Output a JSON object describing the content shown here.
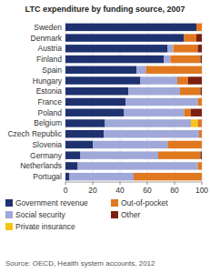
{
  "chart_data": {
    "type": "bar",
    "orientation": "horizontal",
    "stacked": true,
    "title": "LTC expenditure by funding source, 2007",
    "source": "Source: OECD, Health system accounts, 2012",
    "categories": [
      "Sweden",
      "Denmark",
      "Austria",
      "Finland",
      "Spain",
      "Hungary",
      "Estonia",
      "France",
      "Poland",
      "Belgium",
      "Czech Republic",
      "Slovenia",
      "Germany",
      "Netherlands",
      "Portugal"
    ],
    "series": [
      {
        "name": "Government revenue",
        "color": "#1f3270",
        "values": [
          96,
          87,
          75,
          72,
          52,
          55,
          46,
          44,
          43,
          29,
          28,
          20,
          11,
          9,
          3
        ]
      },
      {
        "name": "Social security",
        "color": "#9fa8d8",
        "values": [
          0,
          0,
          4,
          5,
          7,
          27,
          38,
          53,
          44,
          63,
          70,
          55,
          57,
          88,
          47
        ]
      },
      {
        "name": "Private insurance",
        "color": "#f5c518",
        "values": [
          0,
          0,
          0,
          0,
          0,
          0,
          0,
          0,
          0,
          5,
          0,
          0,
          0,
          0,
          0
        ]
      },
      {
        "name": "Out-of-pocket",
        "color": "#e07820",
        "values": [
          4,
          9,
          18,
          22,
          41,
          8,
          15,
          3,
          5,
          3,
          2,
          25,
          31,
          3,
          50
        ]
      },
      {
        "name": "Other",
        "color": "#7b2010",
        "values": [
          0,
          4,
          3,
          1,
          0,
          10,
          1,
          0,
          8,
          0,
          0,
          0,
          1,
          0,
          0
        ]
      }
    ],
    "xlim": [
      0,
      100
    ],
    "xticks": [
      0,
      20,
      40,
      60,
      80,
      100
    ],
    "grid": true,
    "legend": "bottom"
  }
}
